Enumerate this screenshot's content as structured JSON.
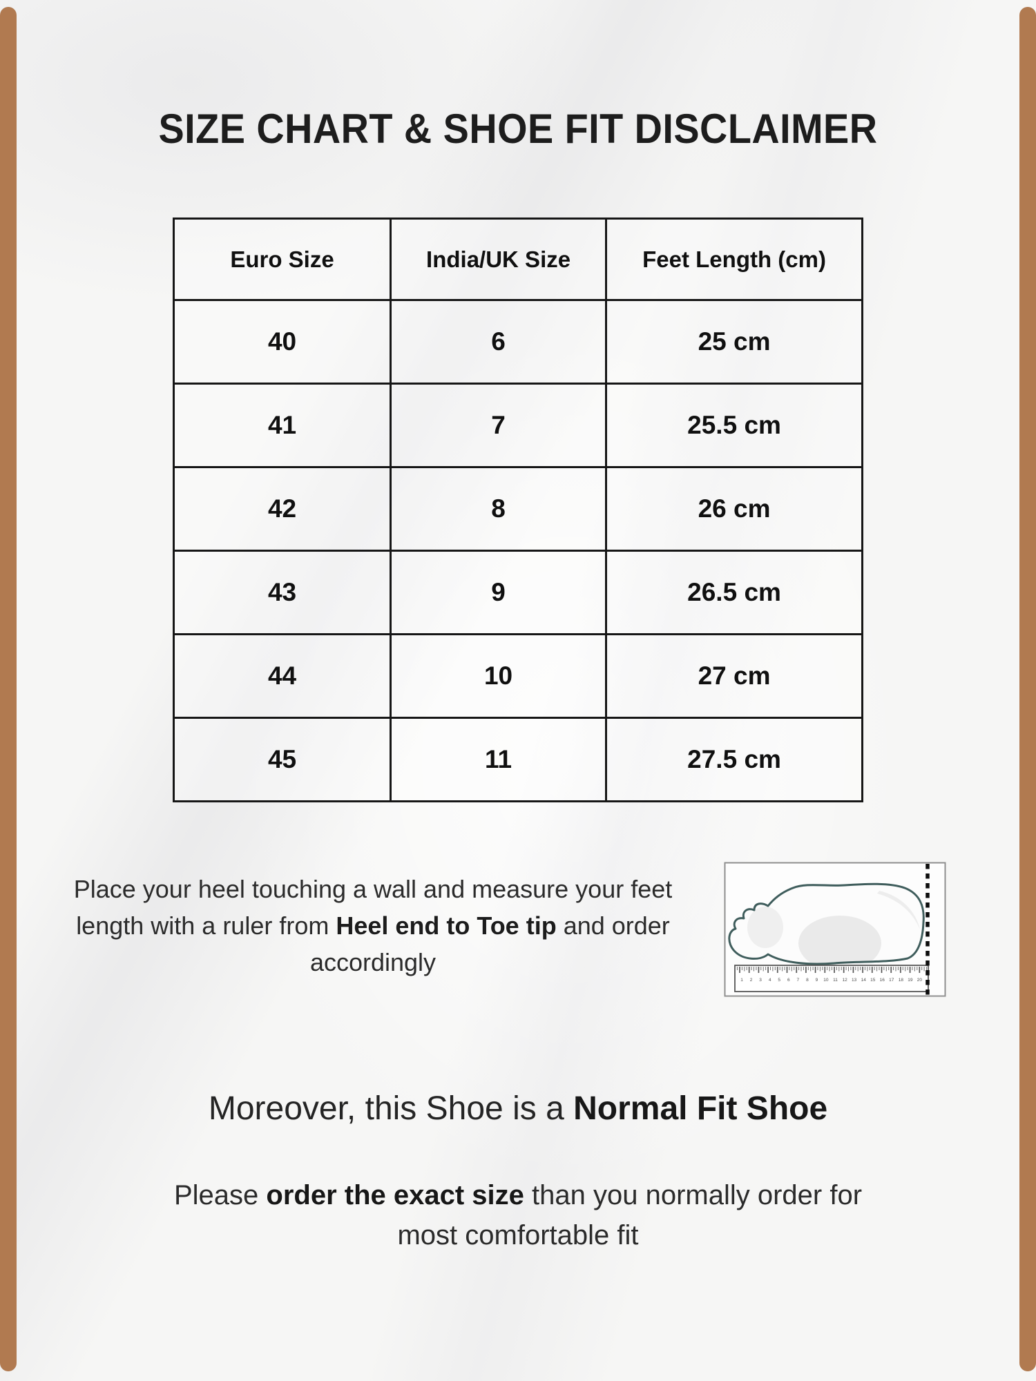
{
  "page": {
    "title": "SIZE CHART & SHOE FIT DISCLAIMER",
    "accent_color": "#b17a50",
    "background_color": "#f6f6f5"
  },
  "size_table": {
    "headers": [
      "Euro Size",
      "India/UK Size",
      "Feet Length (cm)"
    ],
    "rows": [
      [
        "40",
        "6",
        "25 cm"
      ],
      [
        "41",
        "7",
        "25.5 cm"
      ],
      [
        "42",
        "8",
        "26 cm"
      ],
      [
        "43",
        "9",
        "26.5 cm"
      ],
      [
        "44",
        "10",
        "27 cm"
      ],
      [
        "45",
        "11",
        "27.5 cm"
      ]
    ]
  },
  "measure_instructions": {
    "pre_bold": "Place your heel touching a wall and measure your feet length with a ruler from ",
    "bold": "Heel end to Toe tip",
    "post_bold": " and order accordingly"
  },
  "illustration": {
    "name": "foot-on-ruler-measurement-diagram",
    "ruler_numbers": [
      "1",
      "2",
      "3",
      "4",
      "5",
      "6",
      "7",
      "8",
      "9",
      "10",
      "11",
      "12",
      "13",
      "14",
      "15",
      "16",
      "17",
      "18",
      "19",
      "20"
    ],
    "outline_color": "#3f5d5c"
  },
  "fit_note": {
    "pre_bold": "Moreover, this Shoe is a ",
    "bold": "Normal Fit Shoe"
  },
  "order_note": {
    "pre_bold": "Please ",
    "bold": "order the exact size",
    "post_bold": " than you normally order for most comfortable fit"
  }
}
